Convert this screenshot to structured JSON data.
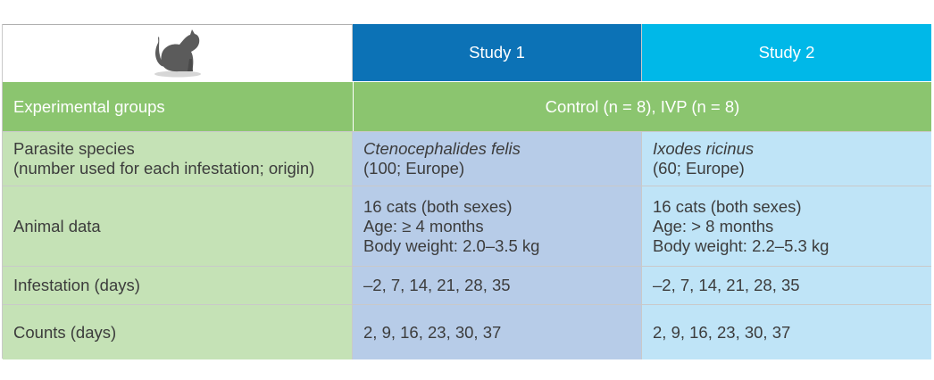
{
  "header": {
    "icon": "cat-silhouette-icon",
    "study1": "Study 1",
    "study2": "Study 2"
  },
  "groups": {
    "label": "Experimental groups",
    "value": "Control (n = 8), IVP (n = 8)"
  },
  "rows": [
    {
      "label": [
        "Parasite species",
        "(number used for each infestation; origin)"
      ],
      "study1": [
        {
          "text": "Ctenocephalides felis",
          "italic": true
        },
        {
          "text": "(100; Europe)"
        }
      ],
      "study2": [
        {
          "text": "Ixodes ricinus",
          "italic": true
        },
        {
          "text": "(60; Europe)"
        }
      ]
    },
    {
      "label": [
        "Animal data"
      ],
      "study1": [
        {
          "text": "16 cats (both sexes)"
        },
        {
          "text": "Age: ≥ 4 months"
        },
        {
          "text": "Body weight: 2.0–3.5 kg"
        }
      ],
      "study2": [
        {
          "text": "16 cats (both sexes)"
        },
        {
          "text": "Age: > 8 months"
        },
        {
          "text": "Body weight: 2.2–5.3 kg"
        }
      ]
    },
    {
      "label": [
        "Infestation (days)"
      ],
      "study1": [
        {
          "text": "–2, 7, 14, 21, 28, 35"
        }
      ],
      "study2": [
        {
          "text": "–2, 7, 14, 21, 28, 35"
        }
      ]
    },
    {
      "label": [
        "Counts (days)"
      ],
      "study1": [
        {
          "text": "2, 9, 16, 23, 30, 37"
        }
      ],
      "study2": [
        {
          "text": "2, 9, 16, 23, 30, 37"
        }
      ]
    }
  ],
  "colors": {
    "study1_header": "#0c72b6",
    "study2_header": "#00b8e8",
    "group_row": "#8bc56f",
    "label_column": "#c5e2b6",
    "study1_column": "#b7cce8",
    "study2_column": "#bfe4f7"
  }
}
